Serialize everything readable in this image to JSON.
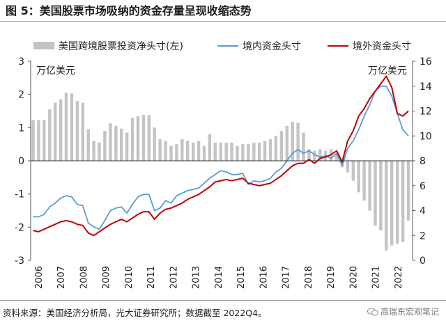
{
  "figure": {
    "title": "图 5：美国股票市场吸纳的资金存量呈现收缩态势",
    "source": "资料来源：美国经济分析局，光大证券研究所；数据截至 2022Q4。",
    "watermark": "高瑞东宏观笔记"
  },
  "chart_data": {
    "type": "bar+line",
    "left_unit_label": "万亿美元",
    "right_unit_label": "万亿美元",
    "left_axis": {
      "range": [
        -3,
        3
      ],
      "ticks": [
        "3",
        "2",
        "1",
        "0",
        "-1",
        "-2",
        "-3"
      ]
    },
    "right_axis": {
      "range": [
        0,
        16
      ],
      "ticks": [
        "16",
        "14",
        "12",
        "10",
        "8",
        "6",
        "4",
        "2",
        "0"
      ]
    },
    "x_ticks": [
      "2006",
      "2007",
      "2008",
      "2009",
      "2010",
      "2011",
      "2012",
      "2013",
      "2014",
      "2015",
      "2016",
      "2017",
      "2018",
      "2019",
      "2020",
      "2021",
      "2022"
    ],
    "legend": {
      "placement": "top",
      "bar_label": "美国跨境股票投资净头寸(左)",
      "inward_label": "境内资金头寸",
      "outward_label": "境外资金头寸"
    },
    "colors": {
      "bar": "#c4c4c4",
      "inward": "#5b9bd5",
      "outward": "#c00000",
      "axis": "#555555"
    },
    "series": [
      {
        "name": "美国跨境股票投资净头寸(左)",
        "axis": "left",
        "kind": "bar",
        "values": [
          1.23,
          1.23,
          1.23,
          1.55,
          1.75,
          1.85,
          2.05,
          2.03,
          1.8,
          1.75,
          0.95,
          0.6,
          0.55,
          0.9,
          1.13,
          1.05,
          0.97,
          0.85,
          1.3,
          1.35,
          1.38,
          1.38,
          1.0,
          0.65,
          0.6,
          0.45,
          0.5,
          0.65,
          0.6,
          0.55,
          0.6,
          0.45,
          0.8,
          0.55,
          0.55,
          0.55,
          0.55,
          0.45,
          0.5,
          0.5,
          0.55,
          0.55,
          0.6,
          0.65,
          0.75,
          0.9,
          1.05,
          1.18,
          1.15,
          0.85,
          0.35,
          0.3,
          0.35,
          0.3,
          0.35,
          0.2,
          -0.2,
          -0.35,
          -0.6,
          -0.95,
          -1.2,
          -1.5,
          -1.95,
          -2.1,
          -2.7,
          -2.55,
          -2.5,
          -2.45,
          -1.8
        ]
      },
      {
        "name": "境内资金头寸",
        "axis": "right",
        "kind": "line",
        "values": [
          3.5,
          3.5,
          3.7,
          4.3,
          4.6,
          5.0,
          5.2,
          5.1,
          4.5,
          4.4,
          3.0,
          2.7,
          2.5,
          3.2,
          4.0,
          4.2,
          4.3,
          3.8,
          4.5,
          5.1,
          5.3,
          5.3,
          4.0,
          4.2,
          4.8,
          4.6,
          5.2,
          5.4,
          5.6,
          5.7,
          5.8,
          6.2,
          6.6,
          6.9,
          7.2,
          7.1,
          6.9,
          6.9,
          7.0,
          6.1,
          6.4,
          6.3,
          6.4,
          6.6,
          7.1,
          7.4,
          8.0,
          8.6,
          8.9,
          8.6,
          8.8,
          8.5,
          8.3,
          8.4,
          8.2,
          8.6,
          7.6,
          9.0,
          9.6,
          10.5,
          11.6,
          12.5,
          13.6,
          14.0,
          14.0,
          13.2,
          11.8,
          10.5,
          10.0
        ]
      },
      {
        "name": "境外资金头寸",
        "axis": "right",
        "kind": "line",
        "values": [
          2.4,
          2.3,
          2.5,
          2.7,
          2.9,
          3.1,
          3.2,
          3.1,
          2.9,
          2.8,
          2.2,
          2.0,
          2.3,
          2.6,
          2.9,
          3.1,
          3.3,
          3.1,
          3.4,
          3.7,
          3.9,
          3.9,
          3.3,
          3.8,
          4.1,
          4.2,
          4.4,
          4.6,
          4.9,
          5.1,
          5.3,
          5.6,
          5.9,
          6.3,
          6.4,
          6.5,
          6.4,
          6.5,
          6.6,
          6.2,
          6.1,
          6.0,
          6.1,
          6.2,
          6.5,
          6.8,
          7.2,
          7.6,
          7.8,
          7.8,
          8.1,
          7.8,
          8.2,
          8.3,
          8.5,
          8.8,
          7.9,
          9.6,
          10.4,
          11.6,
          12.2,
          13.0,
          13.6,
          14.2,
          14.8,
          13.9,
          11.8,
          11.6,
          12.0
        ]
      }
    ]
  }
}
